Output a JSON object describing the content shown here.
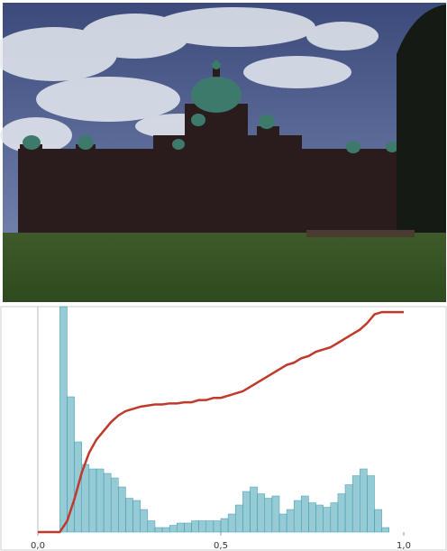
{
  "chart_data": {
    "type": "histogram",
    "bins": [
      0,
      0.02,
      0.04,
      0.06,
      0.08,
      0.1,
      0.12,
      0.14,
      0.16,
      0.18,
      0.2,
      0.22,
      0.24,
      0.26,
      0.28,
      0.3,
      0.32,
      0.34,
      0.36,
      0.38,
      0.4,
      0.42,
      0.44,
      0.46,
      0.48,
      0.5,
      0.52,
      0.54,
      0.56,
      0.58,
      0.6,
      0.62,
      0.64,
      0.66,
      0.68,
      0.7,
      0.72,
      0.74,
      0.76,
      0.78,
      0.8,
      0.82,
      0.84,
      0.86,
      0.88,
      0.9,
      0.92,
      0.94,
      0.96,
      0.98,
      1
    ],
    "values": [
      0,
      0,
      0,
      100,
      60,
      40,
      30,
      28,
      28,
      26,
      24,
      20,
      15,
      14,
      10,
      5,
      2,
      2,
      3,
      4,
      4,
      5,
      5,
      5,
      5,
      6,
      8,
      12,
      18,
      20,
      17,
      15,
      16,
      8,
      10,
      14,
      16,
      13,
      12,
      11,
      13,
      17,
      21,
      25,
      28,
      25,
      10,
      2,
      0,
      0
    ],
    "color": "#3f9fb3",
    "cumulative": {
      "color": "#c0392b",
      "axis": "y2",
      "values": [
        0,
        0,
        0,
        0,
        0.05,
        0.15,
        0.27,
        0.36,
        0.42,
        0.46,
        0.5,
        0.53,
        0.55,
        0.56,
        0.57,
        0.575,
        0.58,
        0.58,
        0.585,
        0.585,
        0.59,
        0.59,
        0.6,
        0.6,
        0.61,
        0.61,
        0.62,
        0.63,
        0.64,
        0.66,
        0.68,
        0.7,
        0.72,
        0.74,
        0.76,
        0.77,
        0.79,
        0.8,
        0.82,
        0.83,
        0.84,
        0.86,
        0.88,
        0.9,
        0.92,
        0.95,
        0.99,
        1,
        1,
        1,
        1
      ]
    },
    "xlim": [
      0,
      1
    ],
    "xticks": [
      {
        "value": 0,
        "label": "0,0"
      },
      {
        "value": 0.5,
        "label": "0,5"
      },
      {
        "value": 1,
        "label": "1,0"
      }
    ],
    "ylim": [
      0,
      100
    ],
    "y2lim": [
      0,
      1.025
    ]
  }
}
